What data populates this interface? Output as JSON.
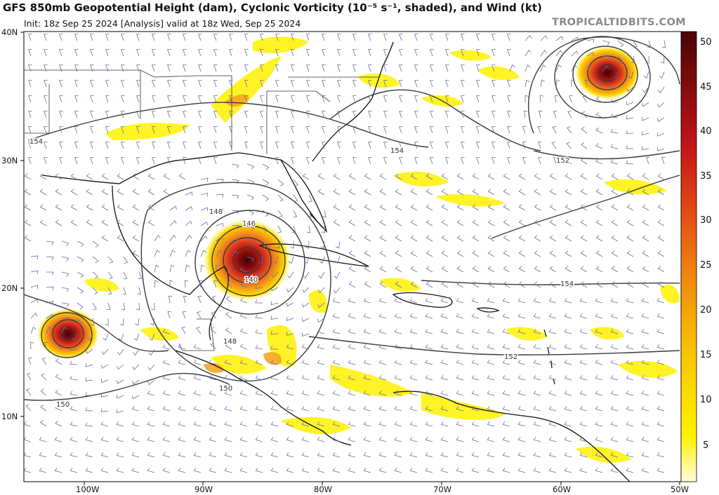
{
  "header": {
    "title": "GFS 850mb Geopotential Height (dam), Cyclonic Vorticity (10⁻⁵ s⁻¹, shaded), and Wind (kt)",
    "subtitle": "Init: 18z Sep 25 2024   [Analysis]   valid at 18z Wed, Sep 25 2024",
    "brand": "TROPICALTIDBITS.COM"
  },
  "axes": {
    "lat_labels": [
      "40N",
      "30N",
      "20N",
      "10N"
    ],
    "lon_labels": [
      "100W",
      "90W",
      "80W",
      "70W",
      "60W",
      "50W"
    ]
  },
  "colorbar": {
    "ticks": [
      "50",
      "45",
      "40",
      "35",
      "30",
      "25",
      "20",
      "15",
      "10",
      "5"
    ]
  },
  "contour_labels": [
    "154",
    "154",
    "152",
    "148",
    "146",
    "140",
    "148",
    "150",
    "150",
    "154",
    "152"
  ],
  "colors": {
    "vort_low": "#fff200",
    "vort_mid": "#f5a623",
    "vort_high": "#d8281c",
    "vort_max": "#5a0a0a",
    "contour": "#333333",
    "coast": "#111111",
    "barb": "#6a6aa8"
  }
}
